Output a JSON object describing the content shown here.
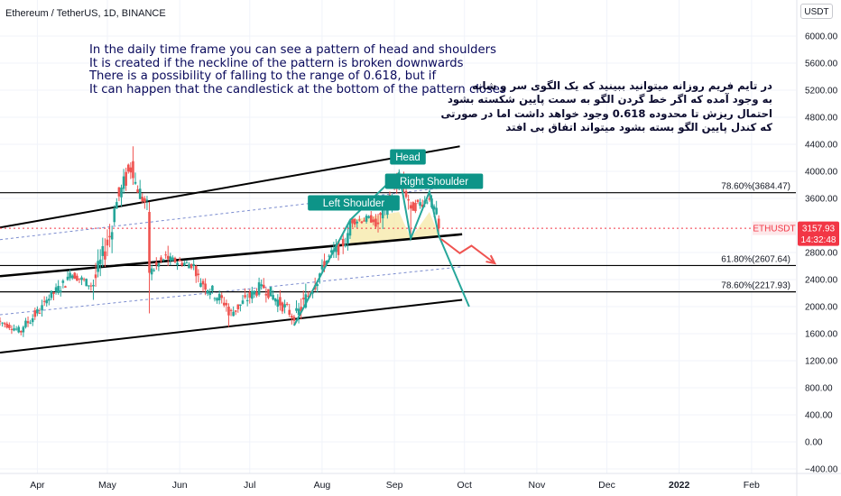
{
  "header": {
    "symbol": "Ethereum / TetherUS",
    "interval": "1D",
    "exchange": "BINANCE",
    "title": "Ethereum / TetherUS, 1D, BINANCE",
    "currency_label": "USDT"
  },
  "notes": {
    "english": [
      "In the daily time frame you can see a pattern of head and shoulders",
      "It is created if the neckline of the pattern is broken downwards",
      "There is a possibility of falling to the range of 0.618, but if",
      "It can happen that the candlestick at the bottom of the pattern closes"
    ],
    "persian": [
      "در تایم فریم روزانه میتوانید ببینید که یک الگوی سر و شانه",
      "به وجود آمده که اگر خط گردن الگو به سمت پایین شکسته بشود",
      "احتمال ریزش تا محدوده 0.618 وجود خواهد داشت اما در صورتی",
      "که کندل پایین الگو بسته بشود میتواند اتفاق بی افتد"
    ]
  },
  "pattern_labels": {
    "left_shoulder": "Left Shoulder",
    "head": "Head",
    "right_shoulder": "Right Shoulder"
  },
  "price_tag": {
    "symbol": "ETHUSDT",
    "price": "3157.93",
    "countdown": "14:32:48",
    "color": "#f23645"
  },
  "colors": {
    "up": "#26a69a",
    "down": "#ef5350",
    "label_bg": "#0d9488",
    "trendline": "#000000",
    "projection_down": "#26a69a",
    "alt_path": "#ef5350",
    "dotted_channel": "#7b8ccf",
    "pattern_fill": "#f5e7a0"
  },
  "chart_data": {
    "type": "candlestick",
    "y_axis": {
      "ticks": [
        6000,
        5600,
        5200,
        4800,
        4400,
        4000,
        3600,
        2800,
        2400,
        2000,
        1600,
        1200,
        800,
        400,
        0,
        -400
      ],
      "tick_labels": [
        "6000.00",
        "5600.00",
        "5200.00",
        "4800.00",
        "4400.00",
        "4000.00",
        "3600.00",
        "2800.00",
        "2400.00",
        "2000.00",
        "1600.00",
        "1200.00",
        "800.00",
        "400.00",
        "0.00",
        "−400.00"
      ],
      "range": [
        -400,
        6500
      ]
    },
    "x_axis": {
      "labels": [
        "Apr",
        "May",
        "Jun",
        "Jul",
        "Aug",
        "Sep",
        "Oct",
        "Nov",
        "Dec",
        "2022",
        "Feb"
      ],
      "label_dates": [
        "2021-04-01",
        "2021-05-01",
        "2021-06-01",
        "2021-07-01",
        "2021-08-01",
        "2021-09-01",
        "2021-10-01",
        "2021-11-01",
        "2021-12-01",
        "2022-01-01",
        "2022-02-01"
      ],
      "range": [
        "2021-03-16",
        "2022-02-20"
      ]
    },
    "fib_levels": [
      {
        "label": "78.60%(3684.47)",
        "value": 3684.47
      },
      {
        "label": "61.80%(2607.64)",
        "value": 2607.64
      },
      {
        "label": "78.60%(2217.93)",
        "value": 2217.93
      }
    ],
    "trendlines": [
      {
        "name": "upper-channel",
        "points": [
          [
            "2021-03-16",
            3170
          ],
          [
            "2021-09-29",
            4370
          ]
        ]
      },
      {
        "name": "neckline",
        "points": [
          [
            "2021-03-16",
            2450
          ],
          [
            "2021-09-30",
            3070
          ]
        ]
      },
      {
        "name": "lower-channel",
        "points": [
          [
            "2021-03-16",
            1320
          ],
          [
            "2021-09-30",
            2100
          ]
        ]
      },
      {
        "name": "dotted-upper",
        "points": [
          [
            "2021-03-16",
            2990
          ],
          [
            "2021-09-30",
            3790
          ]
        ]
      },
      {
        "name": "dotted-lower",
        "points": [
          [
            "2021-03-16",
            1880
          ],
          [
            "2021-09-30",
            2590
          ]
        ]
      }
    ],
    "head_shoulders": [
      [
        "2021-07-20",
        1720
      ],
      [
        "2021-08-13",
        3280
      ],
      [
        "2021-09-03",
        3980
      ],
      [
        "2021-09-08",
        3010
      ],
      [
        "2021-09-16",
        3700
      ],
      [
        "2021-09-20",
        3050
      ]
    ],
    "projection_down": [
      [
        "2021-09-20",
        3050
      ],
      [
        "2021-10-03",
        2000
      ]
    ],
    "alt_path": [
      [
        "2021-09-21",
        3000
      ],
      [
        "2021-09-29",
        2790
      ],
      [
        "2021-10-04",
        2900
      ],
      [
        "2021-10-14",
        2640
      ]
    ],
    "candles_daily_sample": [
      {
        "date": "2021-03-16",
        "o": 1790,
        "h": 1840,
        "l": 1720,
        "c": 1780
      },
      {
        "date": "2021-03-26",
        "o": 1620,
        "h": 1720,
        "l": 1550,
        "c": 1700
      },
      {
        "date": "2021-04-05",
        "o": 2050,
        "h": 2150,
        "l": 2000,
        "c": 2100
      },
      {
        "date": "2021-04-15",
        "o": 2420,
        "h": 2550,
        "l": 2380,
        "c": 2500
      },
      {
        "date": "2021-04-25",
        "o": 2300,
        "h": 2400,
        "l": 2100,
        "c": 2320
      },
      {
        "date": "2021-05-04",
        "o": 3250,
        "h": 3500,
        "l": 3200,
        "c": 3450
      },
      {
        "date": "2021-05-12",
        "o": 4150,
        "h": 4370,
        "l": 3800,
        "c": 3900
      },
      {
        "date": "2021-05-19",
        "o": 3400,
        "h": 3550,
        "l": 1900,
        "c": 2500
      },
      {
        "date": "2021-05-27",
        "o": 2750,
        "h": 2900,
        "l": 2600,
        "c": 2700
      },
      {
        "date": "2021-06-08",
        "o": 2600,
        "h": 2620,
        "l": 2350,
        "c": 2450
      },
      {
        "date": "2021-06-22",
        "o": 2000,
        "h": 2050,
        "l": 1700,
        "c": 1870
      },
      {
        "date": "2021-07-06",
        "o": 2300,
        "h": 2400,
        "l": 2250,
        "c": 2330
      },
      {
        "date": "2021-07-20",
        "o": 1850,
        "h": 1880,
        "l": 1720,
        "c": 1790
      },
      {
        "date": "2021-08-01",
        "o": 2550,
        "h": 2700,
        "l": 2500,
        "c": 2610
      },
      {
        "date": "2021-08-13",
        "o": 3050,
        "h": 3300,
        "l": 3000,
        "c": 3270
      },
      {
        "date": "2021-08-24",
        "o": 3300,
        "h": 3370,
        "l": 3150,
        "c": 3180
      },
      {
        "date": "2021-09-03",
        "o": 3800,
        "h": 4030,
        "l": 3720,
        "c": 3950
      },
      {
        "date": "2021-09-08",
        "o": 3500,
        "h": 3550,
        "l": 3000,
        "c": 3450
      },
      {
        "date": "2021-09-16",
        "o": 3600,
        "h": 3680,
        "l": 3550,
        "c": 3580
      },
      {
        "date": "2021-09-20",
        "o": 3300,
        "h": 3350,
        "l": 3050,
        "c": 3157.93
      }
    ]
  }
}
